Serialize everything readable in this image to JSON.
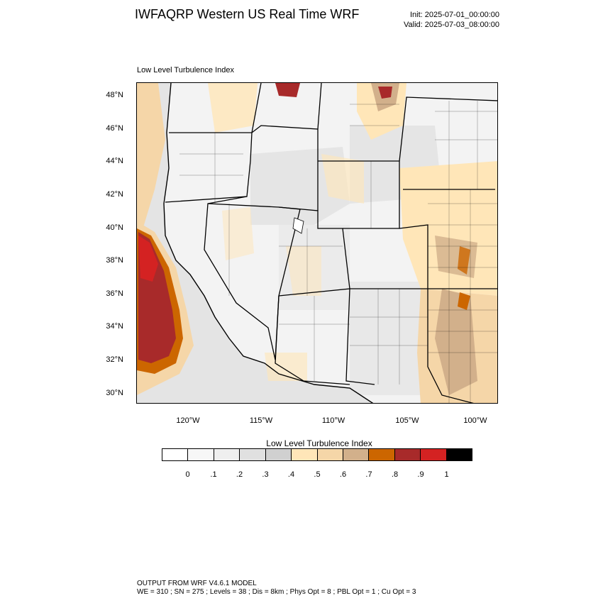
{
  "header": {
    "title": "IWFAQRP Western US Real Time WRF",
    "init": "Init: 2025-07-01_00:00:00",
    "valid": "Valid: 2025-07-03_08:00:00"
  },
  "map": {
    "subtitle": "Low Level Turbulence Index",
    "lat_labels": [
      "48°N",
      "46°N",
      "44°N",
      "42°N",
      "40°N",
      "38°N",
      "36°N",
      "34°N",
      "32°N",
      "30°N"
    ],
    "lon_labels": [
      "120°W",
      "115°W",
      "110°W",
      "105°W",
      "100°W"
    ]
  },
  "colorbar": {
    "title": "Low Level Turbulence Index",
    "colors": [
      "#ffffff",
      "#f7f7f7",
      "#efefef",
      "#e0e0e0",
      "#d0d0d0",
      "#ffe6b8",
      "#f5d6a8",
      "#d2b08b",
      "#cc6600",
      "#a82a2a",
      "#d42222",
      "#000000"
    ],
    "tick_labels": [
      "0",
      ".1",
      ".2",
      ".3",
      ".4",
      ".5",
      ".6",
      ".7",
      ".8",
      ".9",
      "1"
    ]
  },
  "footer": {
    "line1": "OUTPUT FROM WRF V4.6.1 MODEL",
    "line2": "WE = 310 ; SN = 275 ; Levels = 38 ; Dis = 8km ; Phys Opt = 8 ; PBL Opt = 1 ; Cu Opt = 3"
  }
}
